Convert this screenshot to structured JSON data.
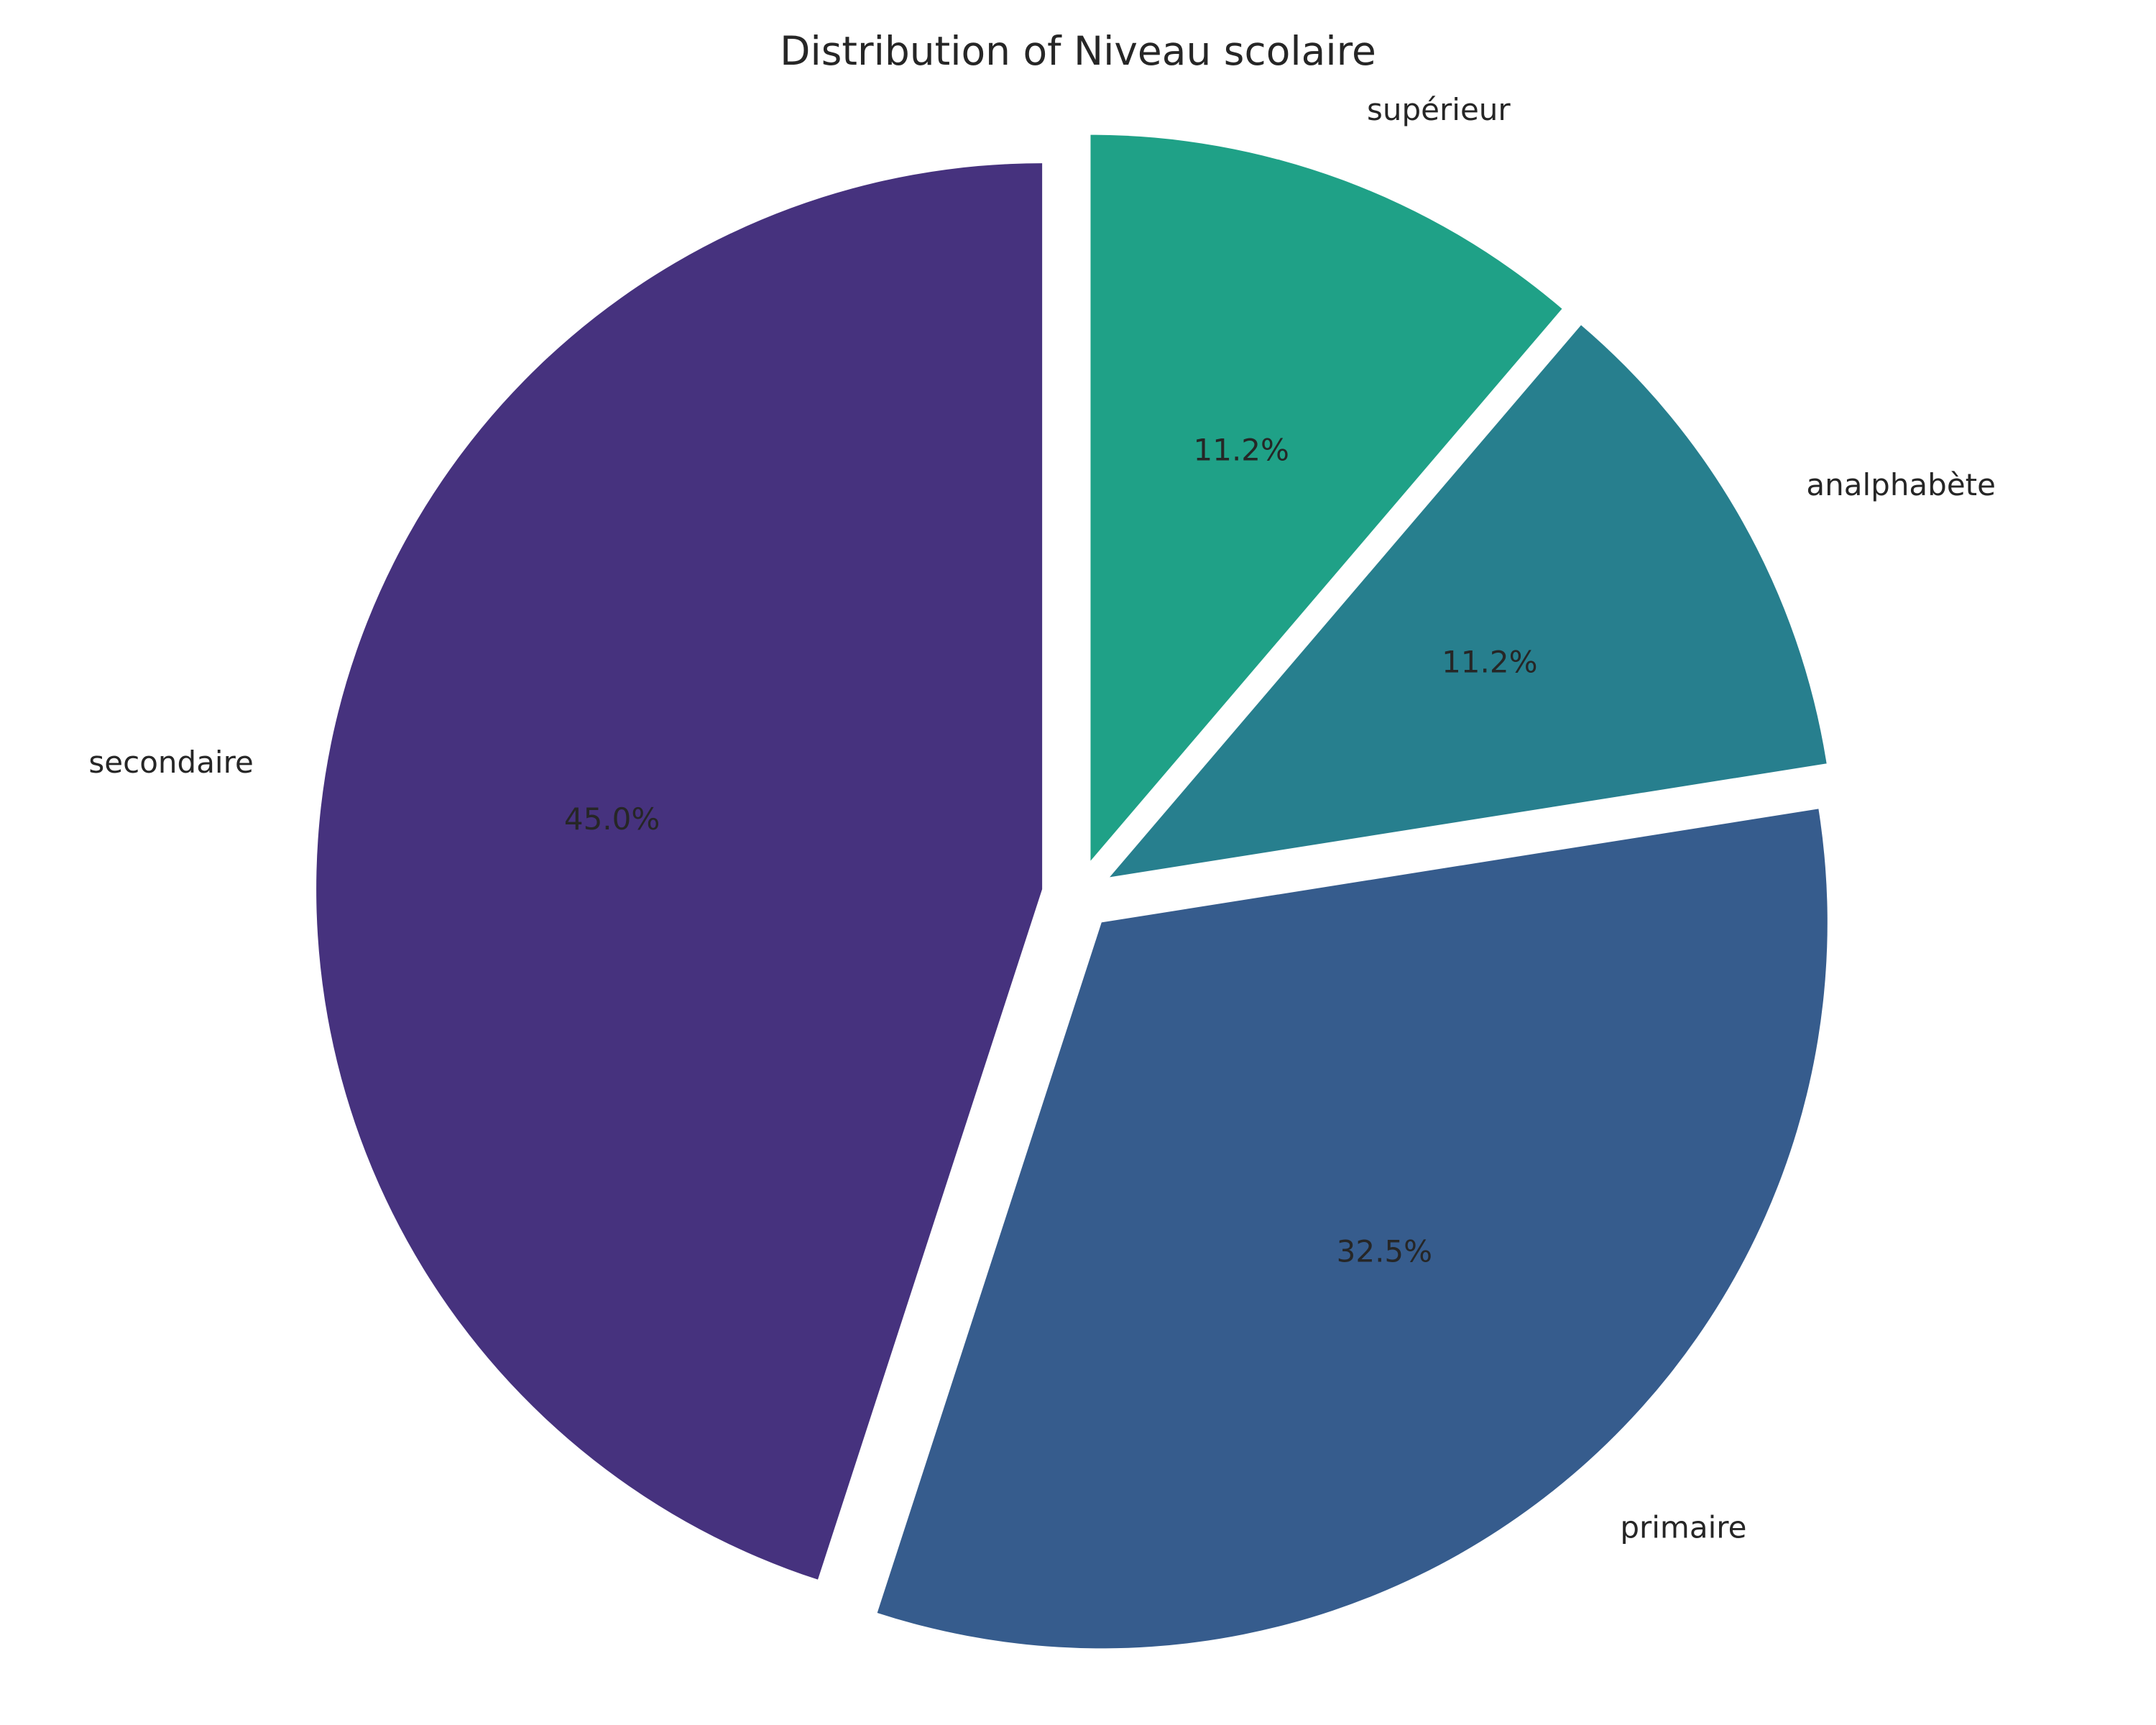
{
  "chart_data": {
    "type": "pie",
    "title": "Distribution of Niveau scolaire",
    "slices": [
      {
        "label": "secondaire",
        "value": 45.0,
        "pct_label": "45.0%",
        "color": "#46327e"
      },
      {
        "label": "primaire",
        "value": 32.5,
        "pct_label": "32.5%",
        "color": "#365c8d"
      },
      {
        "label": "analphabète",
        "value": 11.25,
        "pct_label": "11.2%",
        "color": "#277f8e"
      },
      {
        "label": "supérieur",
        "value": 11.25,
        "pct_label": "11.2%",
        "color": "#1fa187"
      }
    ],
    "start_angle": 90,
    "direction": "counterclockwise",
    "explode": 0.05,
    "legend": "none"
  }
}
